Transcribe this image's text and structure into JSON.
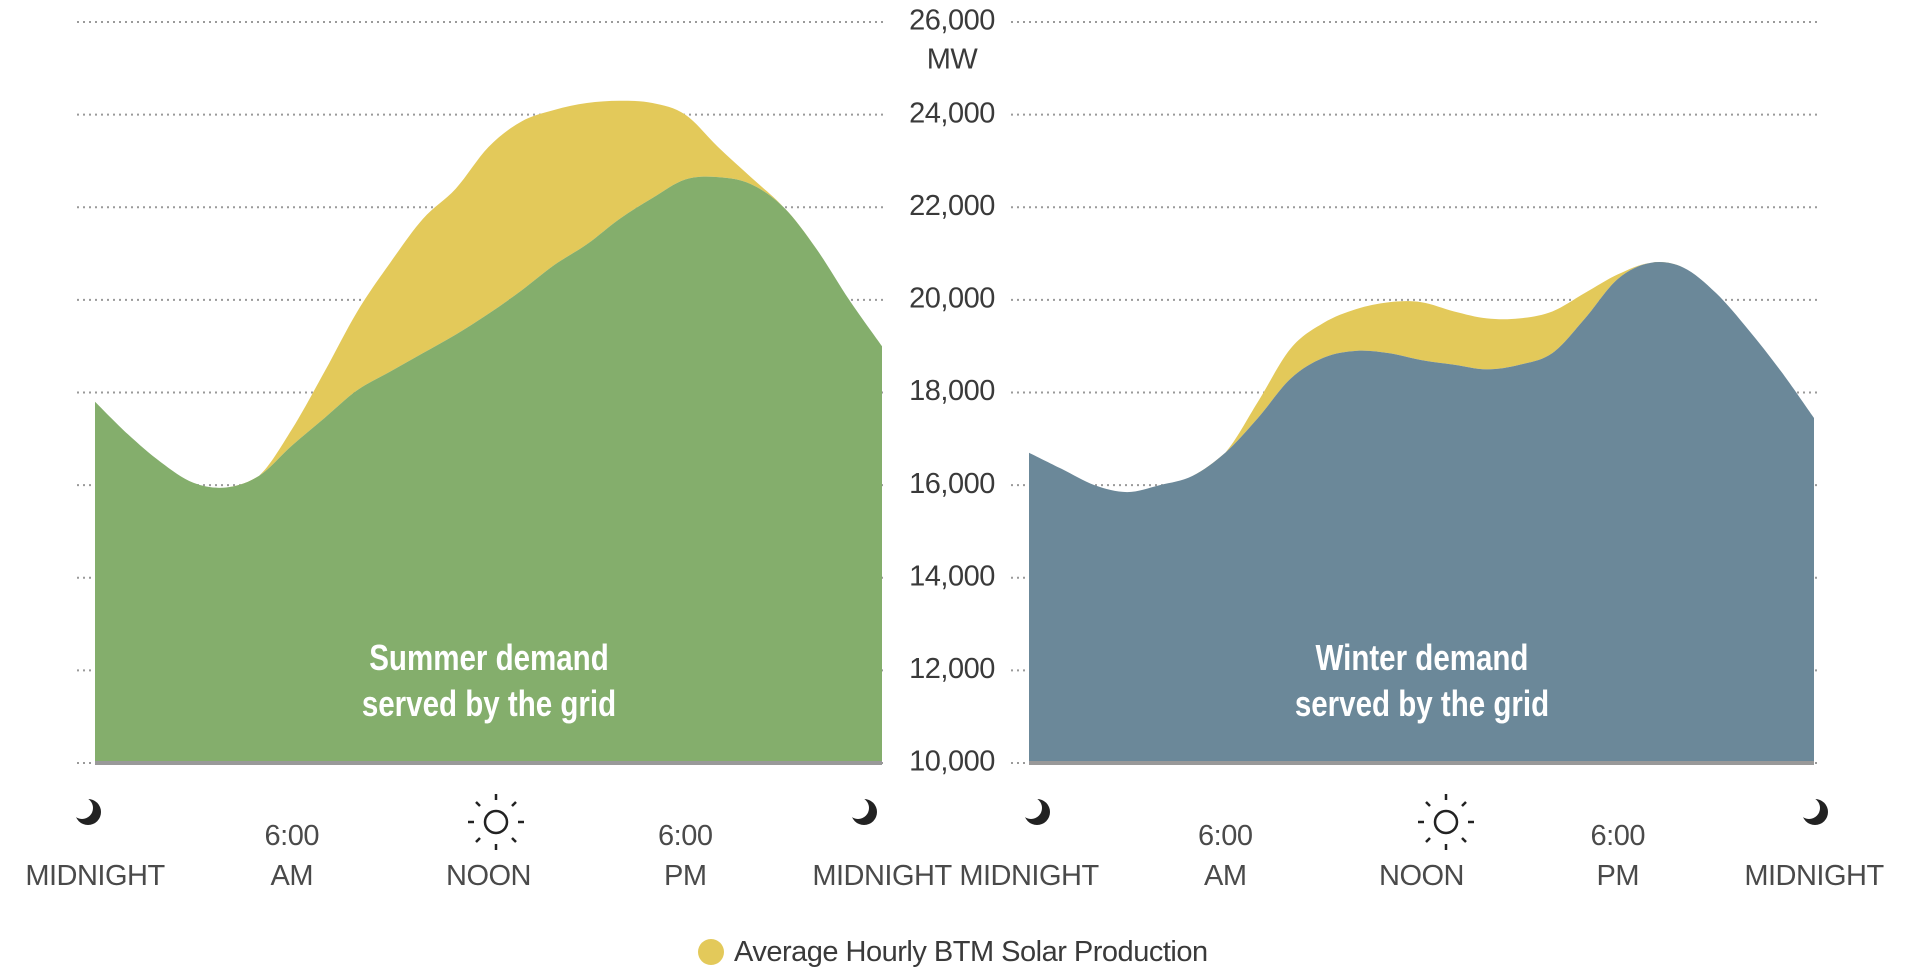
{
  "chart_data": [
    {
      "type": "area",
      "ylabel": "MW",
      "grid": true,
      "x": [
        0,
        1,
        2,
        3,
        4,
        5,
        6,
        7,
        8,
        9,
        10,
        11,
        12,
        13,
        14,
        15,
        16,
        17,
        18,
        19,
        20,
        21,
        22,
        23,
        24
      ],
      "xlim": [
        0,
        24
      ],
      "xticks": [
        {
          "value": 0,
          "label": "MIDNIGHT"
        },
        {
          "value": 6,
          "label": "6:00 AM"
        },
        {
          "value": 12,
          "label": "NOON"
        },
        {
          "value": 18,
          "label": "6:00 PM"
        },
        {
          "value": 24,
          "label": "MIDNIGHT"
        }
      ],
      "ylim": [
        10000,
        26000
      ],
      "yticks": [
        {
          "value": 10000,
          "label": "10,000"
        },
        {
          "value": 12000,
          "label": "12,000"
        },
        {
          "value": 14000,
          "label": "14,000"
        },
        {
          "value": 16000,
          "label": "16,000"
        },
        {
          "value": 18000,
          "label": "18,000"
        },
        {
          "value": 20000,
          "label": "20,000"
        },
        {
          "value": 22000,
          "label": "22,000"
        },
        {
          "value": 24000,
          "label": "24,000"
        },
        {
          "value": 26000,
          "label": "26,000"
        }
      ],
      "annotation": "Summer demand served by the grid",
      "series": [
        {
          "color": "#84ae6c",
          "values": [
            17800,
            17100,
            16500,
            16050,
            15950,
            16200,
            16850,
            17450,
            18050,
            18450,
            18850,
            19250,
            19700,
            20200,
            20750,
            21200,
            21750,
            22200,
            22600,
            22650,
            22500,
            22000,
            21100,
            20000,
            19000
          ]
        },
        {
          "name": "Average Hourly BTM Solar Production",
          "color": "#e3c95a",
          "values": [
            0,
            0,
            0,
            0,
            0,
            0,
            350,
            1000,
            1700,
            2350,
            2900,
            3150,
            3600,
            3650,
            3350,
            3050,
            2550,
            2050,
            1400,
            650,
            150,
            0,
            0,
            0,
            0
          ]
        }
      ]
    },
    {
      "type": "area",
      "x": [
        0,
        1,
        2,
        3,
        4,
        5,
        6,
        7,
        8,
        9,
        10,
        11,
        12,
        13,
        14,
        15,
        16,
        17,
        18,
        19,
        20,
        21,
        22,
        23,
        24
      ],
      "xlim": [
        0,
        24
      ],
      "xticks": [
        {
          "value": 0,
          "label": "MIDNIGHT"
        },
        {
          "value": 6,
          "label": "6:00 AM"
        },
        {
          "value": 12,
          "label": "NOON"
        },
        {
          "value": 18,
          "label": "6:00 PM"
        },
        {
          "value": 24,
          "label": "MIDNIGHT"
        }
      ],
      "ylim": [
        10000,
        26000
      ],
      "annotation": "Winter demand served by the grid",
      "series": [
        {
          "color": "#6b8899",
          "values": [
            16700,
            16350,
            16000,
            15850,
            16000,
            16200,
            16700,
            17450,
            18300,
            18750,
            18900,
            18850,
            18700,
            18600,
            18500,
            18600,
            18850,
            19600,
            20450,
            20800,
            20700,
            20150,
            19350,
            18450,
            17450
          ]
        },
        {
          "color": "#e3c95a",
          "values": [
            0,
            0,
            0,
            0,
            0,
            0,
            0,
            350,
            650,
            750,
            900,
            1100,
            1250,
            1150,
            1100,
            1000,
            900,
            550,
            100,
            0,
            0,
            0,
            0,
            0,
            0
          ]
        }
      ]
    }
  ]
}
